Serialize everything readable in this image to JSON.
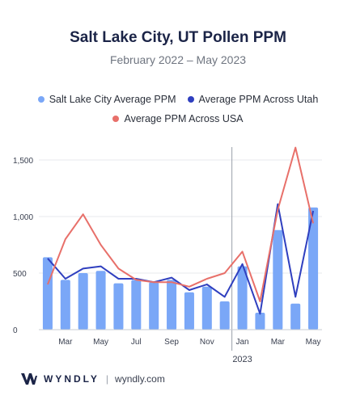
{
  "title": "Salt Lake City, UT Pollen PPM",
  "subtitle": "February 2022 – May 2023",
  "legend": [
    {
      "label": "Salt Lake City Average PPM",
      "color": "#7aa7f7"
    },
    {
      "label": "Average PPM Across Utah",
      "color": "#2f3fbf"
    },
    {
      "label": "Average PPM Across USA",
      "color": "#e8706a"
    }
  ],
  "footer": {
    "brand": "WYNDLY",
    "separator": "|",
    "url": "wyndly.com"
  },
  "chart_data": {
    "type": "bar",
    "x": [
      "Feb 2022",
      "Mar 2022",
      "Apr 2022",
      "May 2022",
      "Jun 2022",
      "Jul 2022",
      "Aug 2022",
      "Sep 2022",
      "Oct 2022",
      "Nov 2022",
      "Dec 2022",
      "Jan 2023",
      "Feb 2023",
      "Mar 2023",
      "Apr 2023",
      "May 2023"
    ],
    "x_tick_labels": [
      {
        "index": 1,
        "label": "Mar"
      },
      {
        "index": 3,
        "label": "May"
      },
      {
        "index": 5,
        "label": "Jul"
      },
      {
        "index": 7,
        "label": "Sep"
      },
      {
        "index": 9,
        "label": "Nov"
      },
      {
        "index": 11,
        "label": "Jan"
      },
      {
        "index": 13,
        "label": "Mar"
      },
      {
        "index": 15,
        "label": "May"
      }
    ],
    "year_label": {
      "index": 11,
      "label": "2023"
    },
    "year_divider_index": 11,
    "y_ticks": [
      0,
      500,
      1000,
      1500
    ],
    "y_tick_labels": [
      "0",
      "500",
      "1,000",
      "1,500"
    ],
    "ylim": [
      0,
      1600
    ],
    "series": [
      {
        "name": "Salt Lake City Average PPM",
        "type": "bar",
        "color": "#7aa7f7",
        "values": [
          640,
          440,
          500,
          520,
          410,
          440,
          420,
          440,
          330,
          380,
          250,
          560,
          150,
          880,
          230,
          1080
        ]
      },
      {
        "name": "Average PPM Across Utah",
        "type": "line",
        "color": "#2f3fbf",
        "values": [
          630,
          450,
          540,
          560,
          450,
          450,
          420,
          460,
          350,
          400,
          290,
          580,
          140,
          1110,
          290,
          1050
        ]
      },
      {
        "name": "Average PPM Across USA",
        "type": "line",
        "color": "#e8706a",
        "values": [
          400,
          800,
          1020,
          750,
          540,
          440,
          420,
          420,
          380,
          450,
          500,
          690,
          250,
          1060,
          1610,
          940
        ]
      }
    ]
  }
}
